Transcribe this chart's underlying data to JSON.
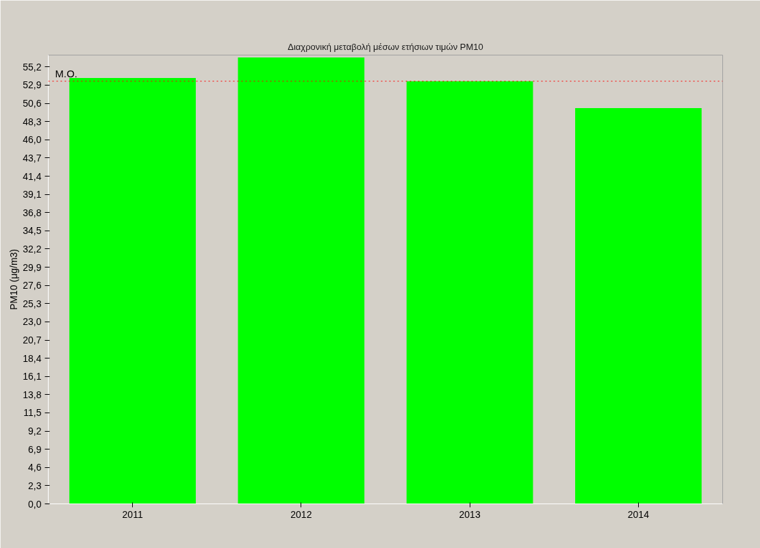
{
  "chart_data": {
    "type": "bar",
    "title": "Διαχρονική μεταβολή μέσων ετήσιων τιμών PM10",
    "ylabel": "PM10 (μg/m3)",
    "categories": [
      "2011",
      "2012",
      "2013",
      "2014"
    ],
    "values": [
      53.8,
      56.4,
      53.4,
      50.0
    ],
    "color": "#00ff00",
    "ylim": [
      0,
      56.7
    ],
    "yticks": [
      {
        "value": 0,
        "label": "0,0"
      },
      {
        "value": 2.3,
        "label": "2,3"
      },
      {
        "value": 4.6,
        "label": "4,6"
      },
      {
        "value": 6.9,
        "label": "6,9"
      },
      {
        "value": 9.2,
        "label": "9,2"
      },
      {
        "value": 11.5,
        "label": "11,5"
      },
      {
        "value": 13.8,
        "label": "13,8"
      },
      {
        "value": 16.1,
        "label": "16,1"
      },
      {
        "value": 18.4,
        "label": "18,4"
      },
      {
        "value": 20.7,
        "label": "20,7"
      },
      {
        "value": 23.0,
        "label": "23,0"
      },
      {
        "value": 25.3,
        "label": "25,3"
      },
      {
        "value": 27.6,
        "label": "27,6"
      },
      {
        "value": 29.9,
        "label": "29,9"
      },
      {
        "value": 32.2,
        "label": "32,2"
      },
      {
        "value": 34.5,
        "label": "34,5"
      },
      {
        "value": 36.8,
        "label": "36,8"
      },
      {
        "value": 39.1,
        "label": "39,1"
      },
      {
        "value": 41.4,
        "label": "41,4"
      },
      {
        "value": 43.7,
        "label": "43,7"
      },
      {
        "value": 46.0,
        "label": "46,0"
      },
      {
        "value": 48.3,
        "label": "48,3"
      },
      {
        "value": 50.6,
        "label": "50,6"
      },
      {
        "value": 52.9,
        "label": "52,9"
      },
      {
        "value": 55.2,
        "label": "55,2"
      }
    ],
    "ref_lines": [
      {
        "axis": "y",
        "value": 53.4,
        "label": "M.O.",
        "color": "#ff0000",
        "line_style": "dotted"
      }
    ],
    "grid": false
  }
}
